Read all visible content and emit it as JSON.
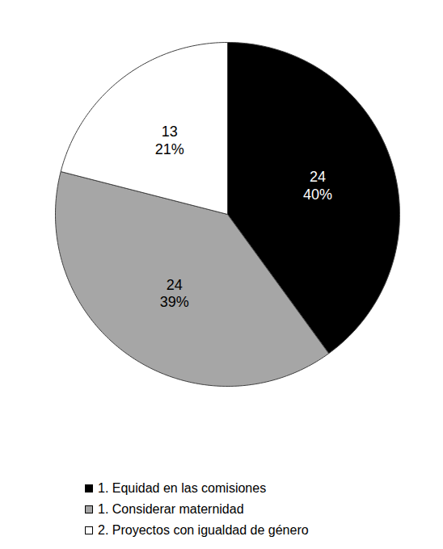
{
  "chart_data": {
    "type": "pie",
    "categories": [
      "1. Equidad en las comisiones",
      "1. Considerar maternidad",
      "2. Proyectos con igualdad de género"
    ],
    "values": [
      40,
      39,
      21
    ],
    "value_labels": [
      "40%",
      "39%",
      "21%"
    ],
    "counts": [
      24,
      24,
      13
    ],
    "colors": [
      "#000000",
      "#a6a6a6",
      "#ffffff"
    ],
    "data_labels": true,
    "legend": "bottom"
  }
}
